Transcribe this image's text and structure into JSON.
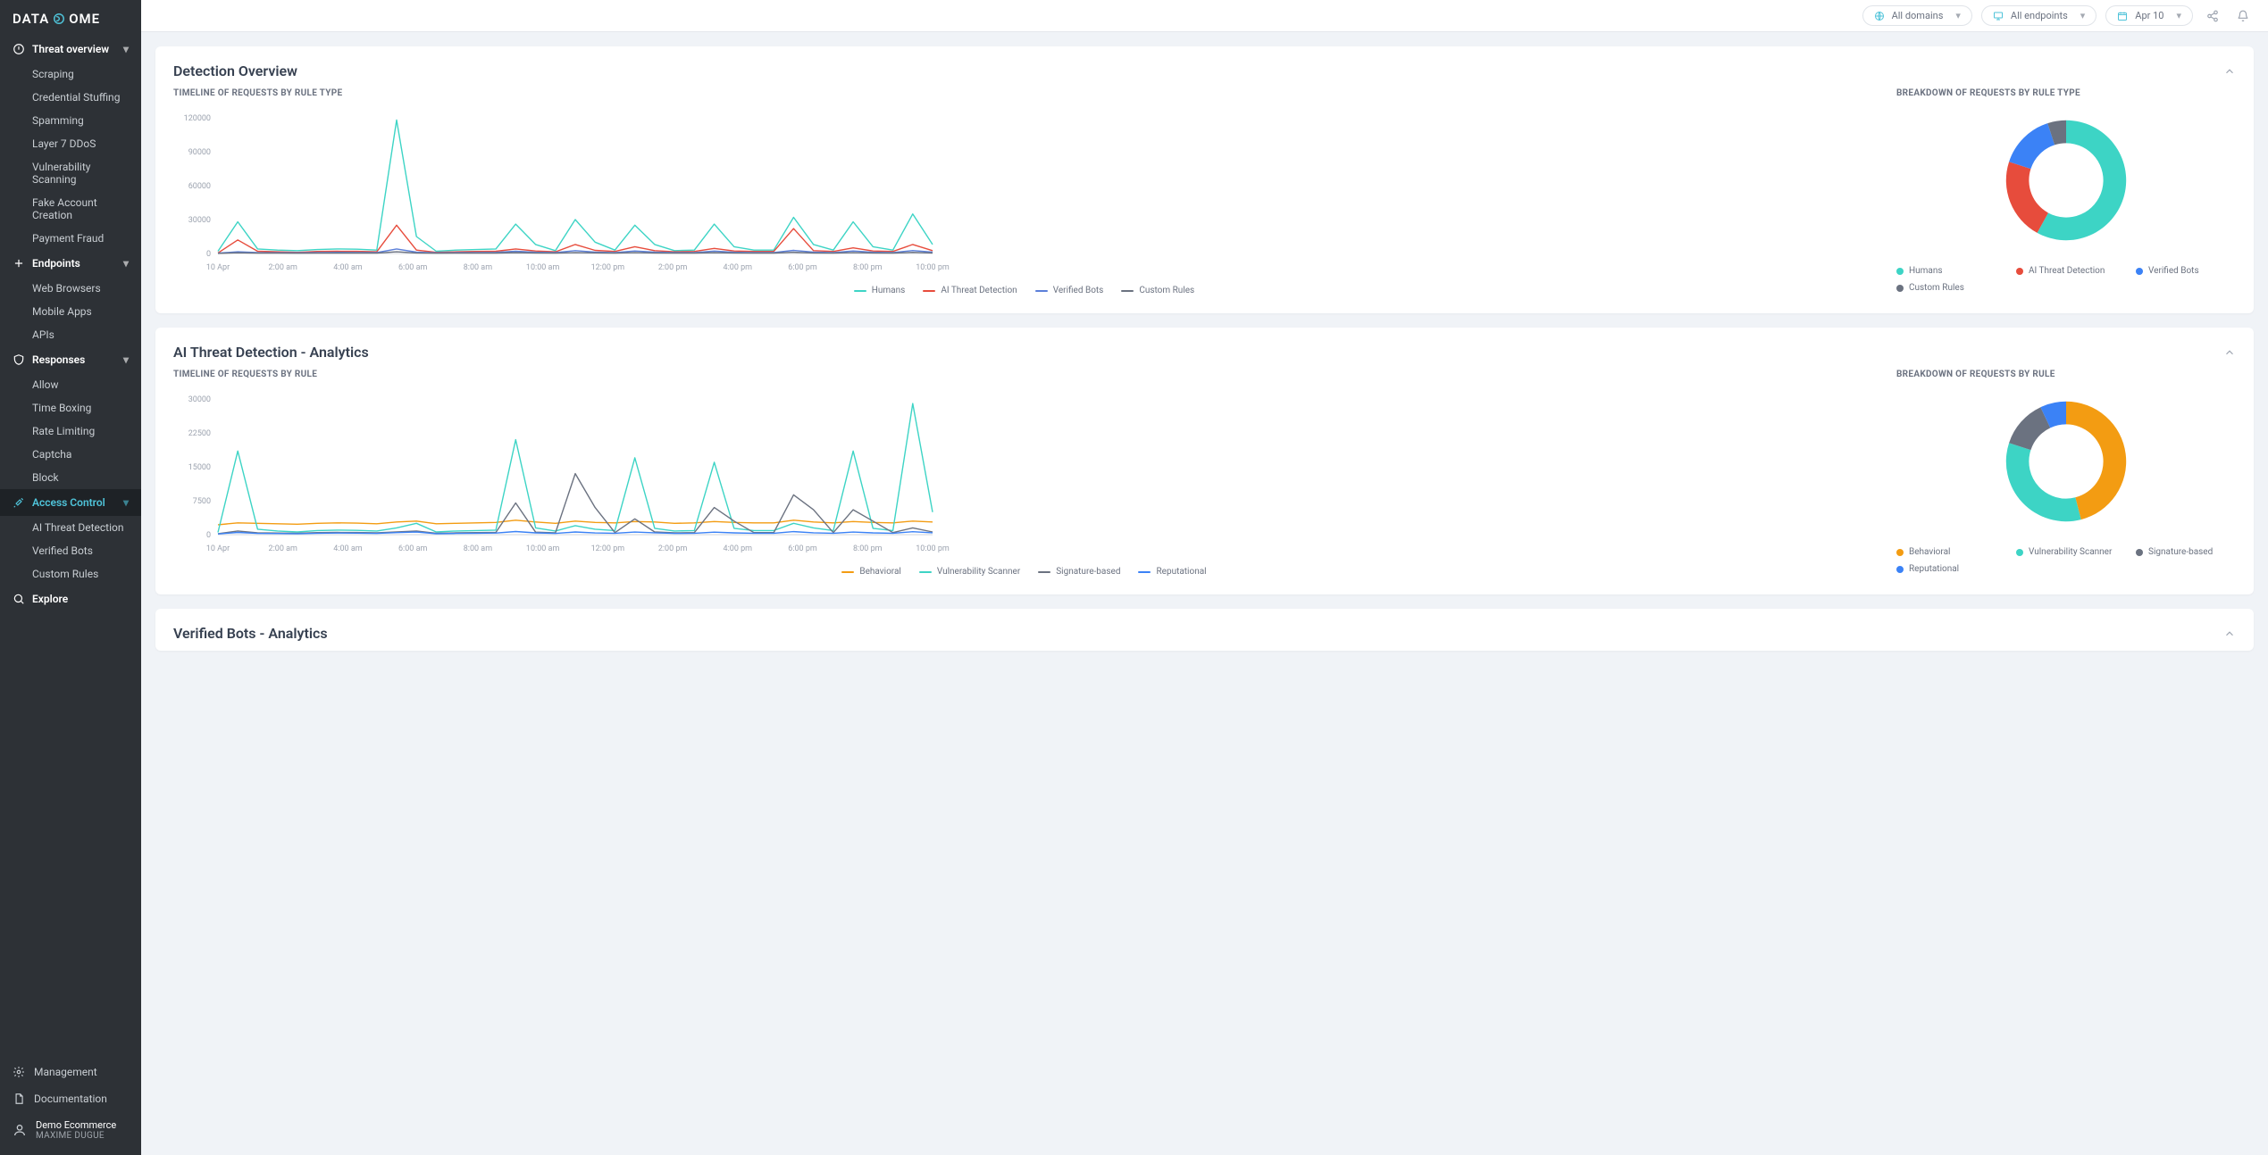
{
  "brand": {
    "name": "DATADOME",
    "accent": "#4fc3d9"
  },
  "topbar": {
    "domains": {
      "label": "All domains"
    },
    "endpoints": {
      "label": "All endpoints"
    },
    "date": {
      "label": "Apr 10"
    }
  },
  "sidebar": {
    "sections": [
      {
        "key": "threat",
        "label": "Threat overview",
        "icon": "alert",
        "items": [
          {
            "label": "Scraping"
          },
          {
            "label": "Credential Stuffing"
          },
          {
            "label": "Spamming"
          },
          {
            "label": "Layer 7 DDoS"
          },
          {
            "label": "Vulnerability Scanning"
          },
          {
            "label": "Fake Account Creation"
          },
          {
            "label": "Payment Fraud"
          }
        ]
      },
      {
        "key": "endpoints",
        "label": "Endpoints",
        "icon": "plus",
        "items": [
          {
            "label": "Web Browsers"
          },
          {
            "label": "Mobile Apps"
          },
          {
            "label": "APIs"
          }
        ]
      },
      {
        "key": "responses",
        "label": "Responses",
        "icon": "shield",
        "items": [
          {
            "label": "Allow"
          },
          {
            "label": "Time Boxing"
          },
          {
            "label": "Rate Limiting"
          },
          {
            "label": "Captcha"
          },
          {
            "label": "Block"
          }
        ]
      },
      {
        "key": "access",
        "label": "Access Control",
        "icon": "tools",
        "active": true,
        "items": [
          {
            "label": "AI Threat Detection"
          },
          {
            "label": "Verified Bots"
          },
          {
            "label": "Custom Rules"
          }
        ]
      },
      {
        "key": "explore",
        "label": "Explore",
        "icon": "search",
        "items": []
      }
    ],
    "bottom": [
      {
        "label": "Management",
        "icon": "gear"
      },
      {
        "label": "Documentation",
        "icon": "doc"
      }
    ],
    "user": {
      "company": "Demo Ecommerce",
      "name": "MAXIME DUGUE"
    }
  },
  "panels": [
    {
      "title": "Detection Overview",
      "timeline": {
        "subtitle": "TIMELINE OF REQUESTS BY RULE TYPE",
        "xLabels": [
          "10 Apr",
          "2:00 am",
          "4:00 am",
          "6:00 am",
          "8:00 am",
          "10:00 am",
          "12:00 pm",
          "2:00 pm",
          "4:00 pm",
          "6:00 pm",
          "8:00 pm",
          "10:00 pm"
        ],
        "yTicks": [
          0,
          30000,
          60000,
          90000,
          120000
        ],
        "ylim": [
          0,
          120000
        ],
        "series": [
          {
            "name": "Humans",
            "color": "#3dd4c5",
            "data": [
              2000,
              28000,
              4000,
              3000,
              2500,
              3500,
              4000,
              3800,
              3000,
              118000,
              15000,
              2000,
              3000,
              3500,
              4000,
              26000,
              8000,
              2500,
              30000,
              10000,
              3000,
              25000,
              8000,
              2500,
              3000,
              26000,
              6000,
              3000,
              3000,
              32000,
              8000,
              3000,
              28000,
              6000,
              3000,
              35000,
              8000
            ]
          },
          {
            "name": "AI Threat Detection",
            "color": "#e74c3c",
            "data": [
              500,
              12000,
              2000,
              1500,
              1000,
              1800,
              2000,
              1900,
              1500,
              25000,
              3000,
              1000,
              1500,
              1800,
              2000,
              4000,
              2200,
              1500,
              8000,
              2800,
              1800,
              6000,
              2500,
              1500,
              1800,
              4500,
              2200,
              1800,
              1800,
              22000,
              2500,
              1800,
              5000,
              2200,
              1800,
              8000,
              2500
            ]
          },
          {
            "name": "Verified Bots",
            "color": "#5b7fd9",
            "data": [
              300,
              1500,
              800,
              700,
              600,
              900,
              1000,
              950,
              800,
              4000,
              1200,
              600,
              800,
              900,
              1000,
              2000,
              1100,
              800,
              2500,
              1300,
              900,
              2200,
              1200,
              800,
              900,
              2100,
              1100,
              900,
              900,
              2800,
              1200,
              900,
              2200,
              1100,
              900,
              2600,
              1200
            ]
          },
          {
            "name": "Custom Rules",
            "color": "#6b7280",
            "data": [
              100,
              600,
              300,
              280,
              250,
              350,
              400,
              380,
              300,
              1500,
              500,
              250,
              300,
              350,
              400,
              800,
              450,
              300,
              900,
              520,
              350,
              850,
              480,
              300,
              350,
              820,
              440,
              350,
              350,
              1100,
              480,
              350,
              860,
              440,
              350,
              1000,
              480
            ]
          }
        ]
      },
      "breakdown": {
        "subtitle": "BREAKDOWN OF REQUESTS BY RULE TYPE",
        "segments": [
          {
            "name": "Humans",
            "color": "#3dd4c5",
            "value": 58
          },
          {
            "name": "AI Threat Detection",
            "color": "#e74c3c",
            "value": 22
          },
          {
            "name": "Verified Bots",
            "color": "#3b82f6",
            "value": 15
          },
          {
            "name": "Custom Rules",
            "color": "#6b7280",
            "value": 5
          }
        ]
      }
    },
    {
      "title": "AI Threat Detection - Analytics",
      "timeline": {
        "subtitle": "TIMELINE OF REQUESTS BY RULE",
        "xLabels": [
          "10 Apr",
          "2:00 am",
          "4:00 am",
          "6:00 am",
          "8:00 am",
          "10:00 am",
          "12:00 pm",
          "2:00 pm",
          "4:00 pm",
          "6:00 pm",
          "8:00 pm",
          "10:00 pm"
        ],
        "yTicks": [
          0,
          7500,
          15000,
          22500,
          30000
        ],
        "ylim": [
          0,
          30000
        ],
        "series": [
          {
            "name": "Behavioral",
            "color": "#f39c12",
            "data": [
              2200,
              2600,
              2500,
              2400,
              2300,
              2500,
              2600,
              2550,
              2400,
              2800,
              3000,
              2400,
              2500,
              2600,
              2700,
              3200,
              2800,
              2500,
              3000,
              2700,
              2600,
              2900,
              2800,
              2500,
              2600,
              2900,
              2700,
              2600,
              2600,
              3200,
              2800,
              2600,
              2900,
              2700,
              2600,
              3000,
              2800
            ]
          },
          {
            "name": "Vulnerability Scanner",
            "color": "#3dd4c5",
            "data": [
              500,
              18500,
              1200,
              800,
              600,
              900,
              1000,
              950,
              800,
              1500,
              2500,
              600,
              800,
              900,
              1000,
              21000,
              1500,
              800,
              2000,
              1200,
              900,
              17000,
              1400,
              800,
              900,
              16000,
              1400,
              900,
              900,
              2500,
              1500,
              900,
              18500,
              1400,
              900,
              29000,
              5000
            ]
          },
          {
            "name": "Signature-based",
            "color": "#6b7280",
            "data": [
              200,
              800,
              400,
              350,
              300,
              450,
              500,
              480,
              400,
              600,
              800,
              300,
              400,
              450,
              500,
              7000,
              550,
              400,
              13500,
              6000,
              450,
              3500,
              600,
              400,
              450,
              6000,
              3000,
              450,
              450,
              8800,
              5500,
              450,
              5500,
              3000,
              450,
              1500,
              600
            ]
          },
          {
            "name": "Reputational",
            "color": "#3b82f6",
            "data": [
              150,
              500,
              280,
              250,
              220,
              320,
              350,
              340,
              280,
              450,
              600,
              220,
              280,
              320,
              350,
              700,
              400,
              280,
              600,
              380,
              320,
              580,
              420,
              280,
              320,
              560,
              400,
              320,
              320,
              680,
              420,
              320,
              580,
              400,
              320,
              650,
              420
            ]
          }
        ]
      },
      "breakdown": {
        "subtitle": "BREAKDOWN OF REQUESTS BY RULE",
        "segments": [
          {
            "name": "Behavioral",
            "color": "#f39c12",
            "value": 46
          },
          {
            "name": "Vulnerability Scanner",
            "color": "#3dd4c5",
            "value": 34
          },
          {
            "name": "Signature-based",
            "color": "#6b7280",
            "value": 13
          },
          {
            "name": "Reputational",
            "color": "#3b82f6",
            "value": 7
          }
        ]
      }
    },
    {
      "title": "Verified Bots - Analytics",
      "collapsedOnly": true
    }
  ]
}
